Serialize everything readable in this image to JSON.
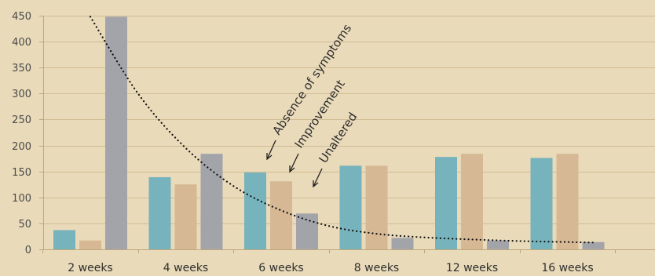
{
  "chart_data": {
    "type": "bar",
    "title": "",
    "xlabel": "",
    "ylabel": "",
    "categories": [
      "2 weeks",
      "4 weeks",
      "6 weeks",
      "8 weeks",
      "12 weeks",
      "16 weeks"
    ],
    "series": [
      {
        "name": "Absence of symptoms",
        "color": "#77B3BC",
        "values": [
          37,
          139,
          148,
          161,
          178,
          176
        ]
      },
      {
        "name": "Improvement",
        "color": "#D6B894",
        "values": [
          17,
          125,
          131,
          161,
          184,
          184
        ]
      },
      {
        "name": "Unaltered",
        "color": "#A3A4AA",
        "values": [
          448,
          184,
          69,
          22,
          17,
          14
        ]
      }
    ],
    "trendline": {
      "style": "dotted",
      "color": "#111111",
      "points": [
        [
          0.5,
          448
        ],
        [
          1.0,
          300
        ],
        [
          1.5,
          195
        ],
        [
          2.0,
          122
        ],
        [
          2.5,
          75
        ],
        [
          3.0,
          45
        ],
        [
          3.5,
          30
        ],
        [
          4.0,
          23
        ],
        [
          4.5,
          19
        ],
        [
          5.0,
          16
        ],
        [
          5.5,
          14
        ],
        [
          5.8,
          13
        ]
      ]
    },
    "ylim": [
      0,
      450
    ],
    "yticks": [
      0,
      50,
      100,
      150,
      200,
      250,
      300,
      350,
      400,
      450
    ],
    "grid": true,
    "gridColor": "#D1BC93",
    "background": "#E9DAB9",
    "legend": "rotated labels with arrows pointing at the 6-week bars"
  }
}
